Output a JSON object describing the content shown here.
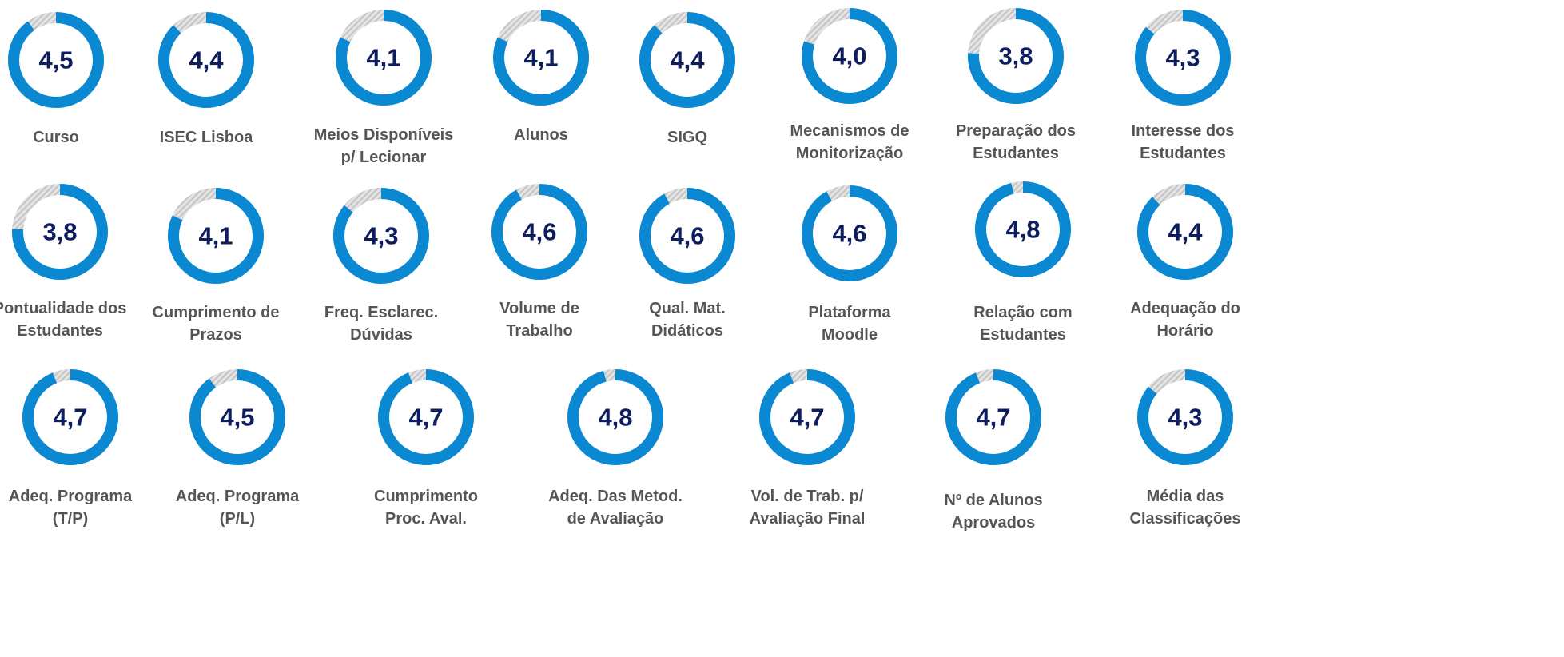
{
  "chart_data": {
    "type": "gauge",
    "categories": [
      "Curso",
      "ISEC Lisboa",
      "Meios Disponíveis p/ Lecionar",
      "Alunos",
      "SIGQ",
      "Mecanismos de Monitorização",
      "Preparação dos Estudantes",
      "Interesse dos Estudantes",
      "Pontualidade dos Estudantes",
      "Cumprimento de Prazos",
      "Freq. Esclarec. Dúvidas",
      "Volume de Trabalho",
      "Qual. Mat. Didáticos",
      "Plataforma Moodle",
      "Relação com Estudantes",
      "Adequação do Horário",
      "Adeq. Programa (T/P)",
      "Adeq. Programa (P/L)",
      "Cumprimento Proc. Aval.",
      "Adeq. Das Metod. de Avaliação",
      "Vol. de Trab. p/ Avaliação Final",
      "Nº de Alunos Aprovados",
      "Média das Classificações"
    ],
    "values": [
      4.5,
      4.4,
      4.1,
      4.1,
      4.4,
      4.0,
      3.8,
      4.3,
      3.8,
      4.1,
      4.3,
      4.6,
      4.6,
      4.6,
      4.8,
      4.4,
      4.7,
      4.5,
      4.7,
      4.8,
      4.7,
      4.7,
      4.3
    ],
    "value_labels": [
      "4,5",
      "4,4",
      "4,1",
      "4,1",
      "4,4",
      "4,0",
      "3,8",
      "4,3",
      "3,8",
      "4,1",
      "4,3",
      "4,6",
      "4,6",
      "4,6",
      "4,8",
      "4,4",
      "4,7",
      "4,5",
      "4,7",
      "4,8",
      "4,7",
      "4,7",
      "4,3"
    ],
    "ylim": [
      0,
      5
    ],
    "color": "#0b88d2"
  }
}
